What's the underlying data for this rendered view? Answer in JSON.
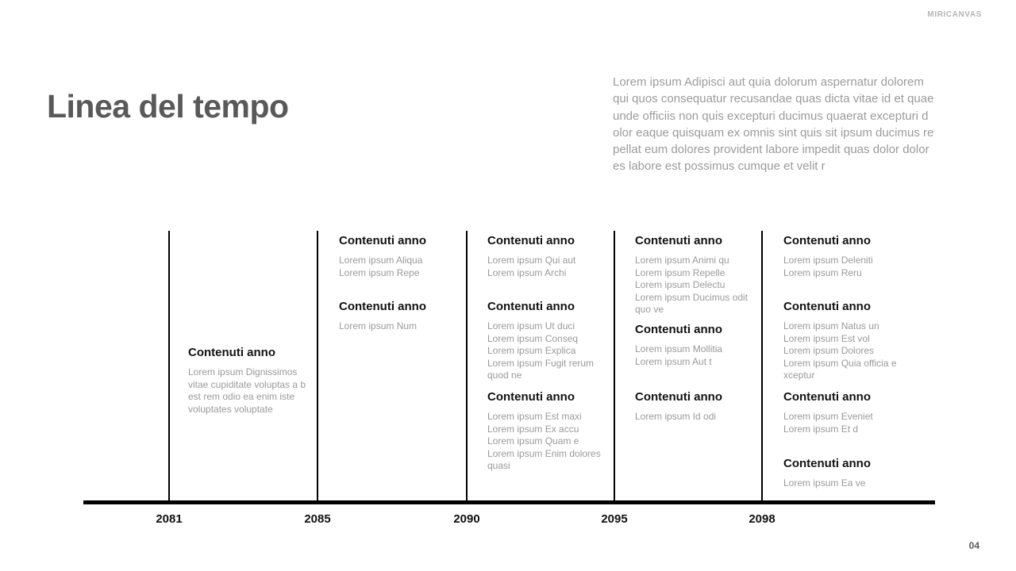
{
  "brand": "MIRICANVAS",
  "page_number": "04",
  "title": "Linea del tempo",
  "intro": "Lorem ipsum Adipisci aut quia dolorum aspernatur dolorem qui quos consequatur recusandae quas dicta vitae id et quae unde officiis non quis excepturi ducimus quaerat excepturi d olor eaque quisquam ex omnis sint quis sit ipsum ducimus re pellat eum dolores provident labore impedit quas dolor dolor es labore est possimus cumque et velit r",
  "colors": {
    "title": "#595959",
    "heading": "#121212",
    "body_text": "#9a9a9a",
    "line": "#000000",
    "brand": "#b5b5b5"
  },
  "timeline": {
    "years": [
      "2081",
      "2085",
      "2090",
      "2095",
      "2098"
    ],
    "columns": [
      {
        "year": "2081",
        "blocks": [
          {
            "heading": "Contenuti anno",
            "lines": [
              "Lorem ipsum Dignissimos vitae cupiditate voluptas a b est rem odio ea enim iste voluptates voluptate"
            ]
          }
        ]
      },
      {
        "year": "2085",
        "blocks": [
          {
            "heading": "Contenuti anno",
            "lines": [
              "Lorem ipsum Aliqua",
              "Lorem ipsum Repe"
            ]
          },
          {
            "heading": "Contenuti anno",
            "lines": [
              "Lorem ipsum Num"
            ]
          }
        ]
      },
      {
        "year": "2090",
        "blocks": [
          {
            "heading": "Contenuti anno",
            "lines": [
              "Lorem ipsum Qui aut",
              "Lorem ipsum Archi"
            ]
          },
          {
            "heading": "Contenuti anno",
            "lines": [
              "Lorem ipsum Ut duci",
              "Lorem ipsum Conseq",
              "Lorem ipsum Explica",
              "Lorem ipsum Fugit rerum quod ne"
            ]
          },
          {
            "heading": "Contenuti anno",
            "lines": [
              "Lorem ipsum Est maxi",
              "Lorem ipsum Ex accu",
              "Lorem ipsum Quam e",
              "Lorem ipsum Enim dolores quasi"
            ]
          }
        ]
      },
      {
        "year": "2095",
        "blocks": [
          {
            "heading": "Contenuti anno",
            "lines": [
              "Lorem ipsum Animi qu",
              "Lorem ipsum Repelle",
              "Lorem ipsum Delectu",
              "Lorem ipsum Ducimus odit quo ve"
            ]
          },
          {
            "heading": "Contenuti anno",
            "lines": [
              "Lorem ipsum Mollitia",
              "Lorem ipsum Aut t"
            ]
          },
          {
            "heading": "Contenuti anno",
            "lines": [
              "Lorem ipsum Id odi"
            ]
          }
        ]
      },
      {
        "year": "2098",
        "blocks": [
          {
            "heading": "Contenuti anno",
            "lines": [
              "Lorem ipsum Deleniti",
              "Lorem ipsum Reru"
            ]
          },
          {
            "heading": "Contenuti anno",
            "lines": [
              "Lorem ipsum Natus un",
              "Lorem ipsum Est vol",
              "Lorem ipsum Dolores",
              "Lorem ipsum Quia officia e xceptur"
            ]
          },
          {
            "heading": "Contenuti anno",
            "lines": [
              "Lorem ipsum Eveniet",
              "Lorem ipsum Et d"
            ]
          },
          {
            "heading": "Contenuti anno",
            "lines": [
              "Lorem ipsum Ea ve"
            ]
          }
        ]
      }
    ]
  }
}
